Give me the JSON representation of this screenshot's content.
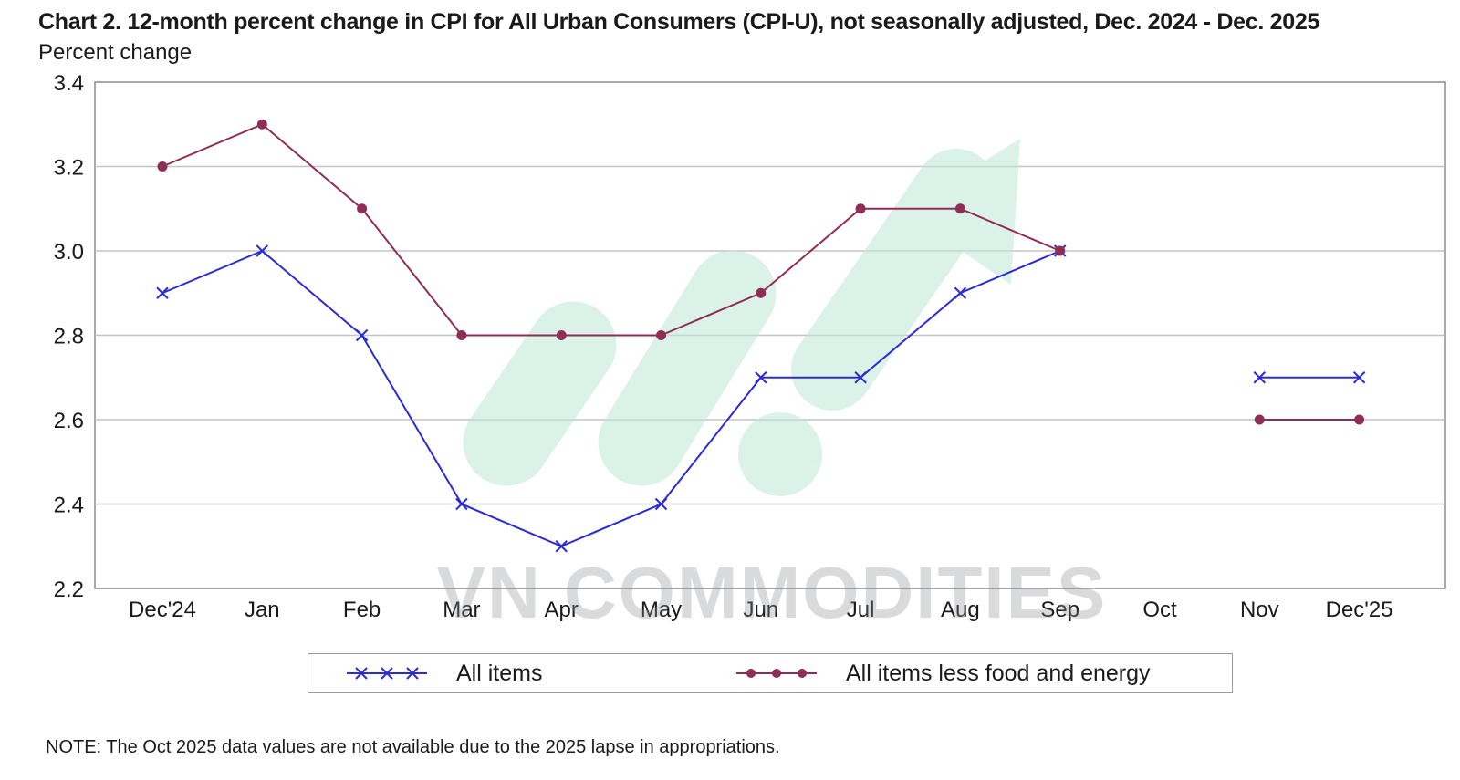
{
  "chart_data": {
    "type": "line",
    "title": "Chart 2. 12-month percent change in CPI for All Urban Consumers (CPI-U), not seasonally adjusted, Dec. 2024 - Dec. 2025",
    "ylabel": "Percent change",
    "xlabel": "",
    "categories": [
      "Dec'24",
      "Jan",
      "Feb",
      "Mar",
      "Apr",
      "May",
      "Jun",
      "Jul",
      "Aug",
      "Sep",
      "Oct",
      "Nov",
      "Dec'25"
    ],
    "ylim": [
      2.2,
      3.4
    ],
    "yticks": [
      "3.4",
      "3.2",
      "3.0",
      "2.8",
      "2.6",
      "2.4",
      "2.2"
    ],
    "grid": true,
    "legend_position": "bottom",
    "series": [
      {
        "name": "All items",
        "color": "#2b2bd6",
        "marker": "x",
        "values": [
          2.9,
          3.0,
          2.8,
          2.4,
          2.3,
          2.4,
          2.7,
          2.7,
          2.9,
          3.0,
          null,
          2.7,
          2.7
        ]
      },
      {
        "name": "All items less food and energy",
        "color": "#8e2d55",
        "marker": "circle",
        "values": [
          3.2,
          3.3,
          3.1,
          2.8,
          2.8,
          2.8,
          2.9,
          3.1,
          3.1,
          3.0,
          null,
          2.6,
          2.6
        ]
      }
    ],
    "note": "NOTE: The Oct 2025 data values are not available due to the 2025 lapse in appropriations."
  },
  "watermark": {
    "text": "VN COMMODITIES",
    "colors": {
      "text": "#8a8d95",
      "logo": "#bfe8d8"
    }
  }
}
